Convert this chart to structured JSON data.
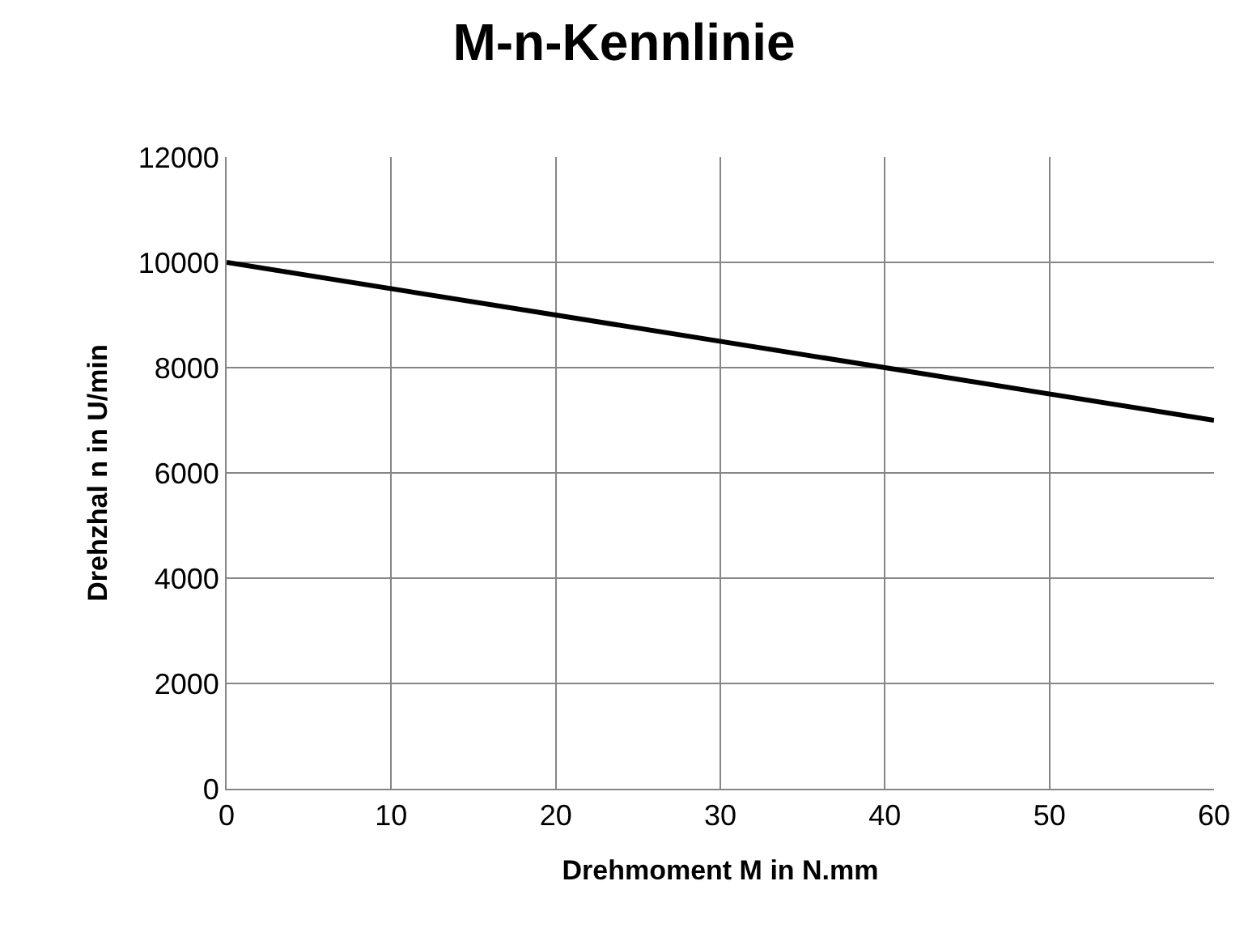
{
  "chart_data": {
    "type": "line",
    "title": "M-n-Kennlinie",
    "xlabel": "Drehmoment M in N.mm",
    "ylabel": "Drehzhal n in U/min",
    "x": [
      0,
      60
    ],
    "series": [
      {
        "color": "#000000",
        "values": [
          10000,
          7000
        ]
      }
    ],
    "xlim": [
      0,
      60
    ],
    "xticks": [
      0,
      10,
      20,
      30,
      40,
      50,
      60
    ],
    "ylim": [
      0,
      12000
    ],
    "yticks": [
      0,
      2000,
      4000,
      6000,
      8000,
      10000,
      12000
    ],
    "grid": true,
    "marker": "none",
    "line_style": "solid"
  }
}
